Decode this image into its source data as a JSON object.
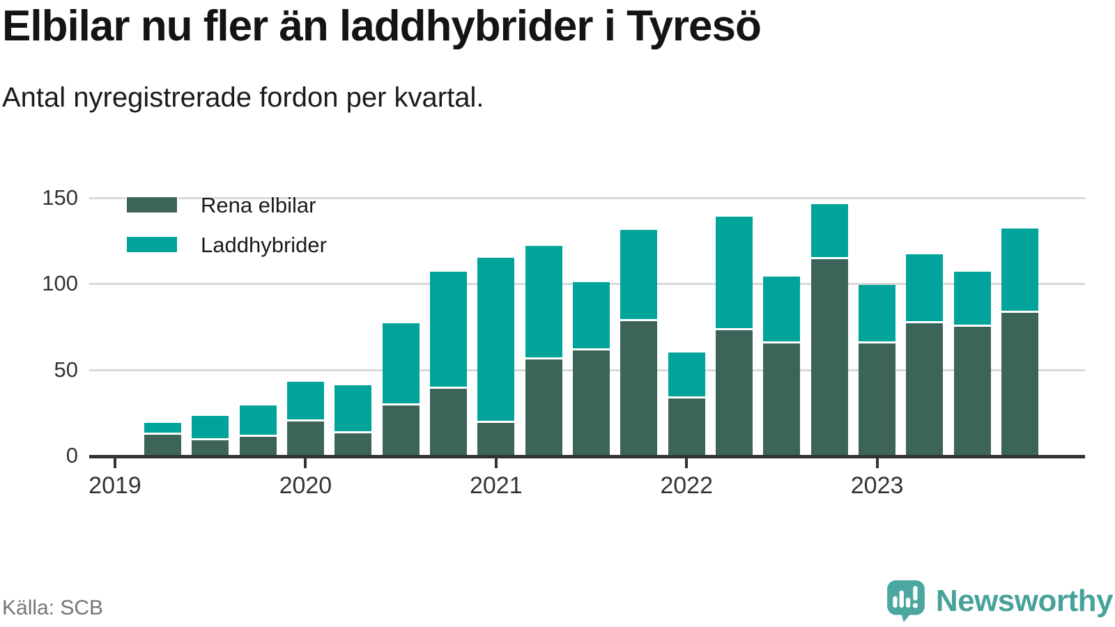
{
  "header": {
    "title": "Elbilar nu fler än laddhybrider i Tyresö",
    "subtitle": "Antal nyregistrerade fordon per kvartal."
  },
  "legend": {
    "items": [
      {
        "label": "Rena elbilar",
        "color": "#3d6459"
      },
      {
        "label": "Laddhybrider",
        "color": "#00a49b"
      }
    ]
  },
  "footer": {
    "source": "Källa: SCB",
    "brand_name": "Newsworthy"
  },
  "icons": {
    "brand": "newsworthy-speech-bubble-bar-chart-icon"
  },
  "colors": {
    "accent_dark": "#3d6459",
    "accent_teal": "#00a49b",
    "brand_teal": "#4ba79f",
    "axis_text": "#333333",
    "grid": "#d9d9d9",
    "source_text": "#757575"
  },
  "chart_data": {
    "type": "bar",
    "stacked": true,
    "title": "Elbilar nu fler än laddhybrider i Tyresö",
    "subtitle": "Antal nyregistrerade fordon per kvartal.",
    "categories": [
      "2019 Q2",
      "2019 Q3",
      "2019 Q4",
      "2020 Q1",
      "2020 Q2",
      "2020 Q3",
      "2020 Q4",
      "2021 Q1",
      "2021 Q2",
      "2021 Q3",
      "2021 Q4",
      "2022 Q1",
      "2022 Q2",
      "2022 Q3",
      "2022 Q4",
      "2023 Q1",
      "2023 Q2",
      "2023 Q3",
      "2023 Q4"
    ],
    "series": [
      {
        "name": "Rena elbilar",
        "color": "#3d6459",
        "values": [
          12,
          9,
          11,
          20,
          13,
          29,
          39,
          19,
          56,
          61,
          78,
          33,
          73,
          65,
          114,
          65,
          77,
          75,
          83
        ]
      },
      {
        "name": "Laddhybrider",
        "color": "#00a49b",
        "values": [
          7,
          14,
          18,
          23,
          28,
          48,
          68,
          96,
          66,
          40,
          53,
          27,
          66,
          39,
          32,
          34,
          40,
          32,
          49
        ]
      }
    ],
    "totals": [
      19,
      23,
      29,
      43,
      41,
      77,
      107,
      115,
      122,
      101,
      131,
      60,
      139,
      104,
      146,
      99,
      117,
      107,
      132
    ],
    "x_tick_labels": [
      "2019",
      "2020",
      "2021",
      "2022",
      "2023"
    ],
    "y_ticks": [
      0,
      50,
      100,
      150
    ],
    "ylim": [
      0,
      163
    ],
    "grid": true,
    "legend_position": "top-left"
  }
}
